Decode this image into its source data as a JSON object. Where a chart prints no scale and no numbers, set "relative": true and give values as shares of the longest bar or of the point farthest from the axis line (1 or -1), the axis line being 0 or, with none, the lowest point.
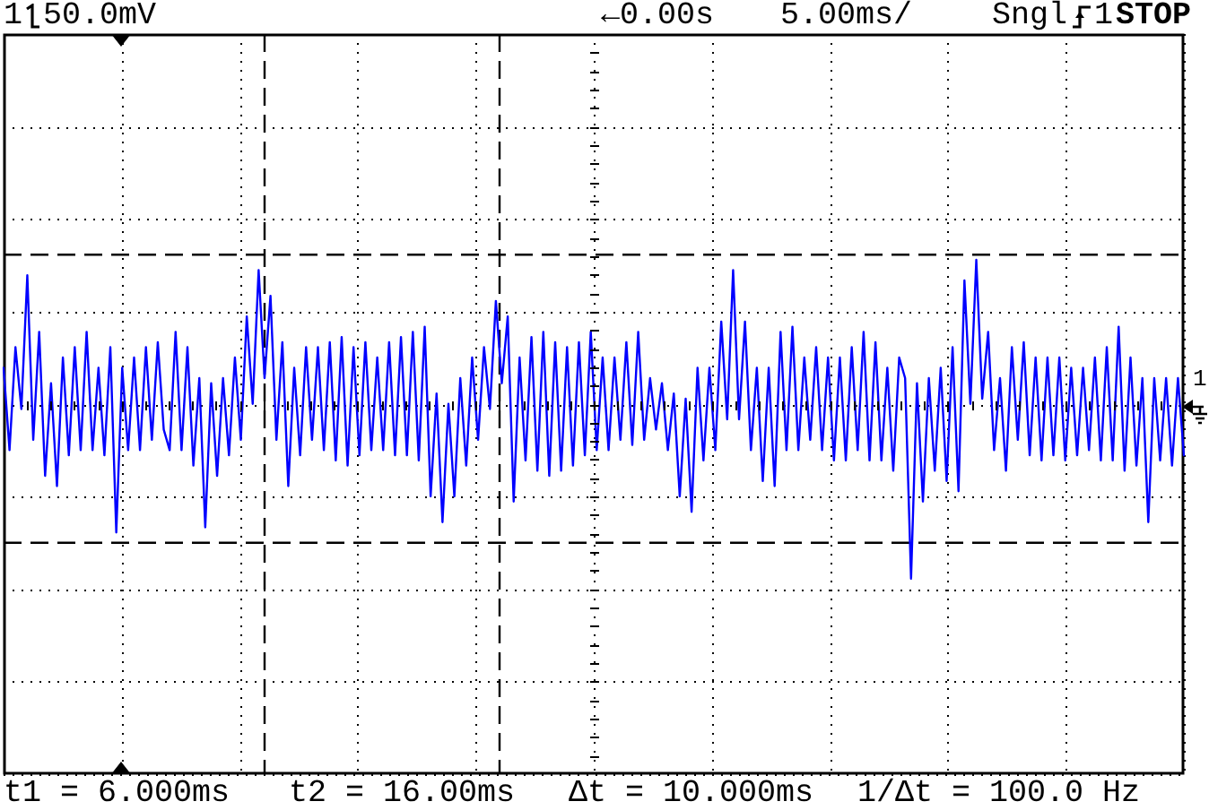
{
  "chart_data": {
    "type": "line",
    "relative": true,
    "color": "#0000ff",
    "marker": "none",
    "line_style": "solid",
    "grid": true,
    "legend": false,
    "categories": [
      null,
      null,
      null,
      null,
      null,
      null,
      null,
      null,
      null,
      null,
      null,
      null,
      null,
      null,
      null,
      null,
      null,
      null,
      null,
      null,
      null,
      null,
      null,
      null,
      null,
      null,
      null,
      null,
      null,
      null,
      null,
      null,
      null,
      null,
      null,
      null,
      null,
      null,
      null,
      null,
      null,
      null,
      null,
      null,
      null,
      null,
      null,
      null,
      null,
      null,
      null,
      null,
      null,
      null,
      null,
      null,
      null,
      null,
      null,
      null,
      null,
      null,
      null,
      null,
      null,
      null,
      null,
      null,
      null,
      null,
      null,
      null,
      null,
      null,
      null,
      null,
      null,
      null,
      null,
      null,
      null,
      null,
      null,
      null,
      null,
      null,
      null,
      null,
      null,
      null,
      null,
      null,
      null,
      null,
      null,
      null,
      null,
      null,
      null,
      null,
      null,
      null,
      null,
      null,
      null,
      null,
      null,
      null,
      null,
      null,
      null,
      null,
      null,
      null,
      null,
      null,
      null,
      null,
      null,
      null,
      null,
      null,
      null,
      null,
      null,
      null,
      null,
      null,
      null,
      null,
      null,
      null,
      null,
      null,
      null,
      null,
      null,
      null,
      null,
      null,
      null,
      null,
      null,
      null,
      null,
      null,
      null,
      null,
      null,
      null,
      null,
      null,
      null,
      null,
      null,
      null,
      null,
      null,
      null,
      null,
      null,
      null,
      null,
      null,
      null,
      null,
      null,
      null,
      null,
      null,
      null,
      null,
      null,
      null,
      null,
      null,
      null,
      null,
      null,
      null,
      null,
      null,
      null,
      null,
      null,
      null,
      null,
      null,
      null,
      null,
      null,
      null,
      null,
      null,
      null,
      null,
      null,
      null,
      null,
      null
    ],
    "values": [
      0.79,
      0.63,
      0.83,
      0.71,
      0.97,
      0.65,
      0.86,
      0.58,
      0.76,
      0.56,
      0.81,
      0.62,
      0.83,
      0.63,
      0.86,
      0.63,
      0.79,
      0.62,
      0.83,
      0.47,
      0.79,
      0.63,
      0.81,
      0.63,
      0.83,
      0.65,
      0.84,
      0.67,
      0.63,
      0.86,
      0.63,
      0.83,
      0.6,
      0.77,
      0.48,
      0.76,
      0.58,
      0.77,
      0.62,
      0.81,
      0.65,
      0.89,
      0.72,
      0.98,
      0.77,
      0.93,
      0.65,
      0.84,
      0.56,
      0.79,
      0.62,
      0.83,
      0.65,
      0.83,
      0.63,
      0.84,
      0.61,
      0.85,
      0.6,
      0.83,
      0.62,
      0.84,
      0.63,
      0.81,
      0.63,
      0.84,
      0.62,
      0.85,
      0.62,
      0.86,
      0.61,
      0.87,
      0.54,
      0.74,
      0.49,
      0.72,
      0.54,
      0.77,
      0.6,
      0.81,
      0.65,
      0.83,
      0.71,
      0.92,
      0.76,
      0.89,
      0.53,
      0.81,
      0.61,
      0.85,
      0.59,
      0.86,
      0.58,
      0.84,
      0.59,
      0.83,
      0.6,
      0.84,
      0.62,
      0.86,
      0.63,
      0.81,
      0.63,
      0.81,
      0.65,
      0.84,
      0.64,
      0.86,
      0.65,
      0.77,
      0.67,
      0.76,
      0.63,
      0.74,
      0.54,
      0.73,
      0.51,
      0.79,
      0.61,
      0.79,
      0.63,
      0.88,
      0.69,
      0.98,
      0.69,
      0.88,
      0.63,
      0.79,
      0.57,
      0.79,
      0.56,
      0.86,
      0.63,
      0.87,
      0.63,
      0.81,
      0.65,
      0.83,
      0.63,
      0.81,
      0.61,
      0.81,
      0.61,
      0.83,
      0.63,
      0.86,
      0.61,
      0.84,
      0.61,
      0.79,
      0.59,
      0.81,
      0.77,
      0.38,
      0.76,
      0.53,
      0.77,
      0.59,
      0.79,
      0.57,
      0.83,
      0.55,
      0.96,
      0.72,
      1,
      0.73,
      0.86,
      0.63,
      0.77,
      0.59,
      0.83,
      0.65,
      0.84,
      0.62,
      0.81,
      0.61,
      0.81,
      0.62,
      0.81,
      0.61,
      0.79,
      0.62,
      0.79,
      0.63,
      0.81,
      0.61,
      0.83,
      0.61,
      0.87,
      0.59,
      0.81,
      0.6,
      0.77,
      0.49,
      0.77,
      0.61,
      0.77,
      0.6,
      0.77,
      0.62
    ],
    "ref_lines": [
      {
        "axis": "y",
        "value": 1.01,
        "color": "#000000",
        "line_style": "dashed"
      },
      {
        "axis": "y",
        "value": 0.45,
        "color": "#000000",
        "line_style": "dashed"
      }
    ],
    "annotations": [
      "1",
      "50.0mV",
      "←0.00s",
      "5.00ms/",
      "Sngl",
      "1",
      "STOP",
      "t1 = 6.000ms",
      "t2 = 16.00ms",
      "Δt = 10.000ms",
      "1/Δt = 100.0 Hz",
      "1"
    ]
  }
}
